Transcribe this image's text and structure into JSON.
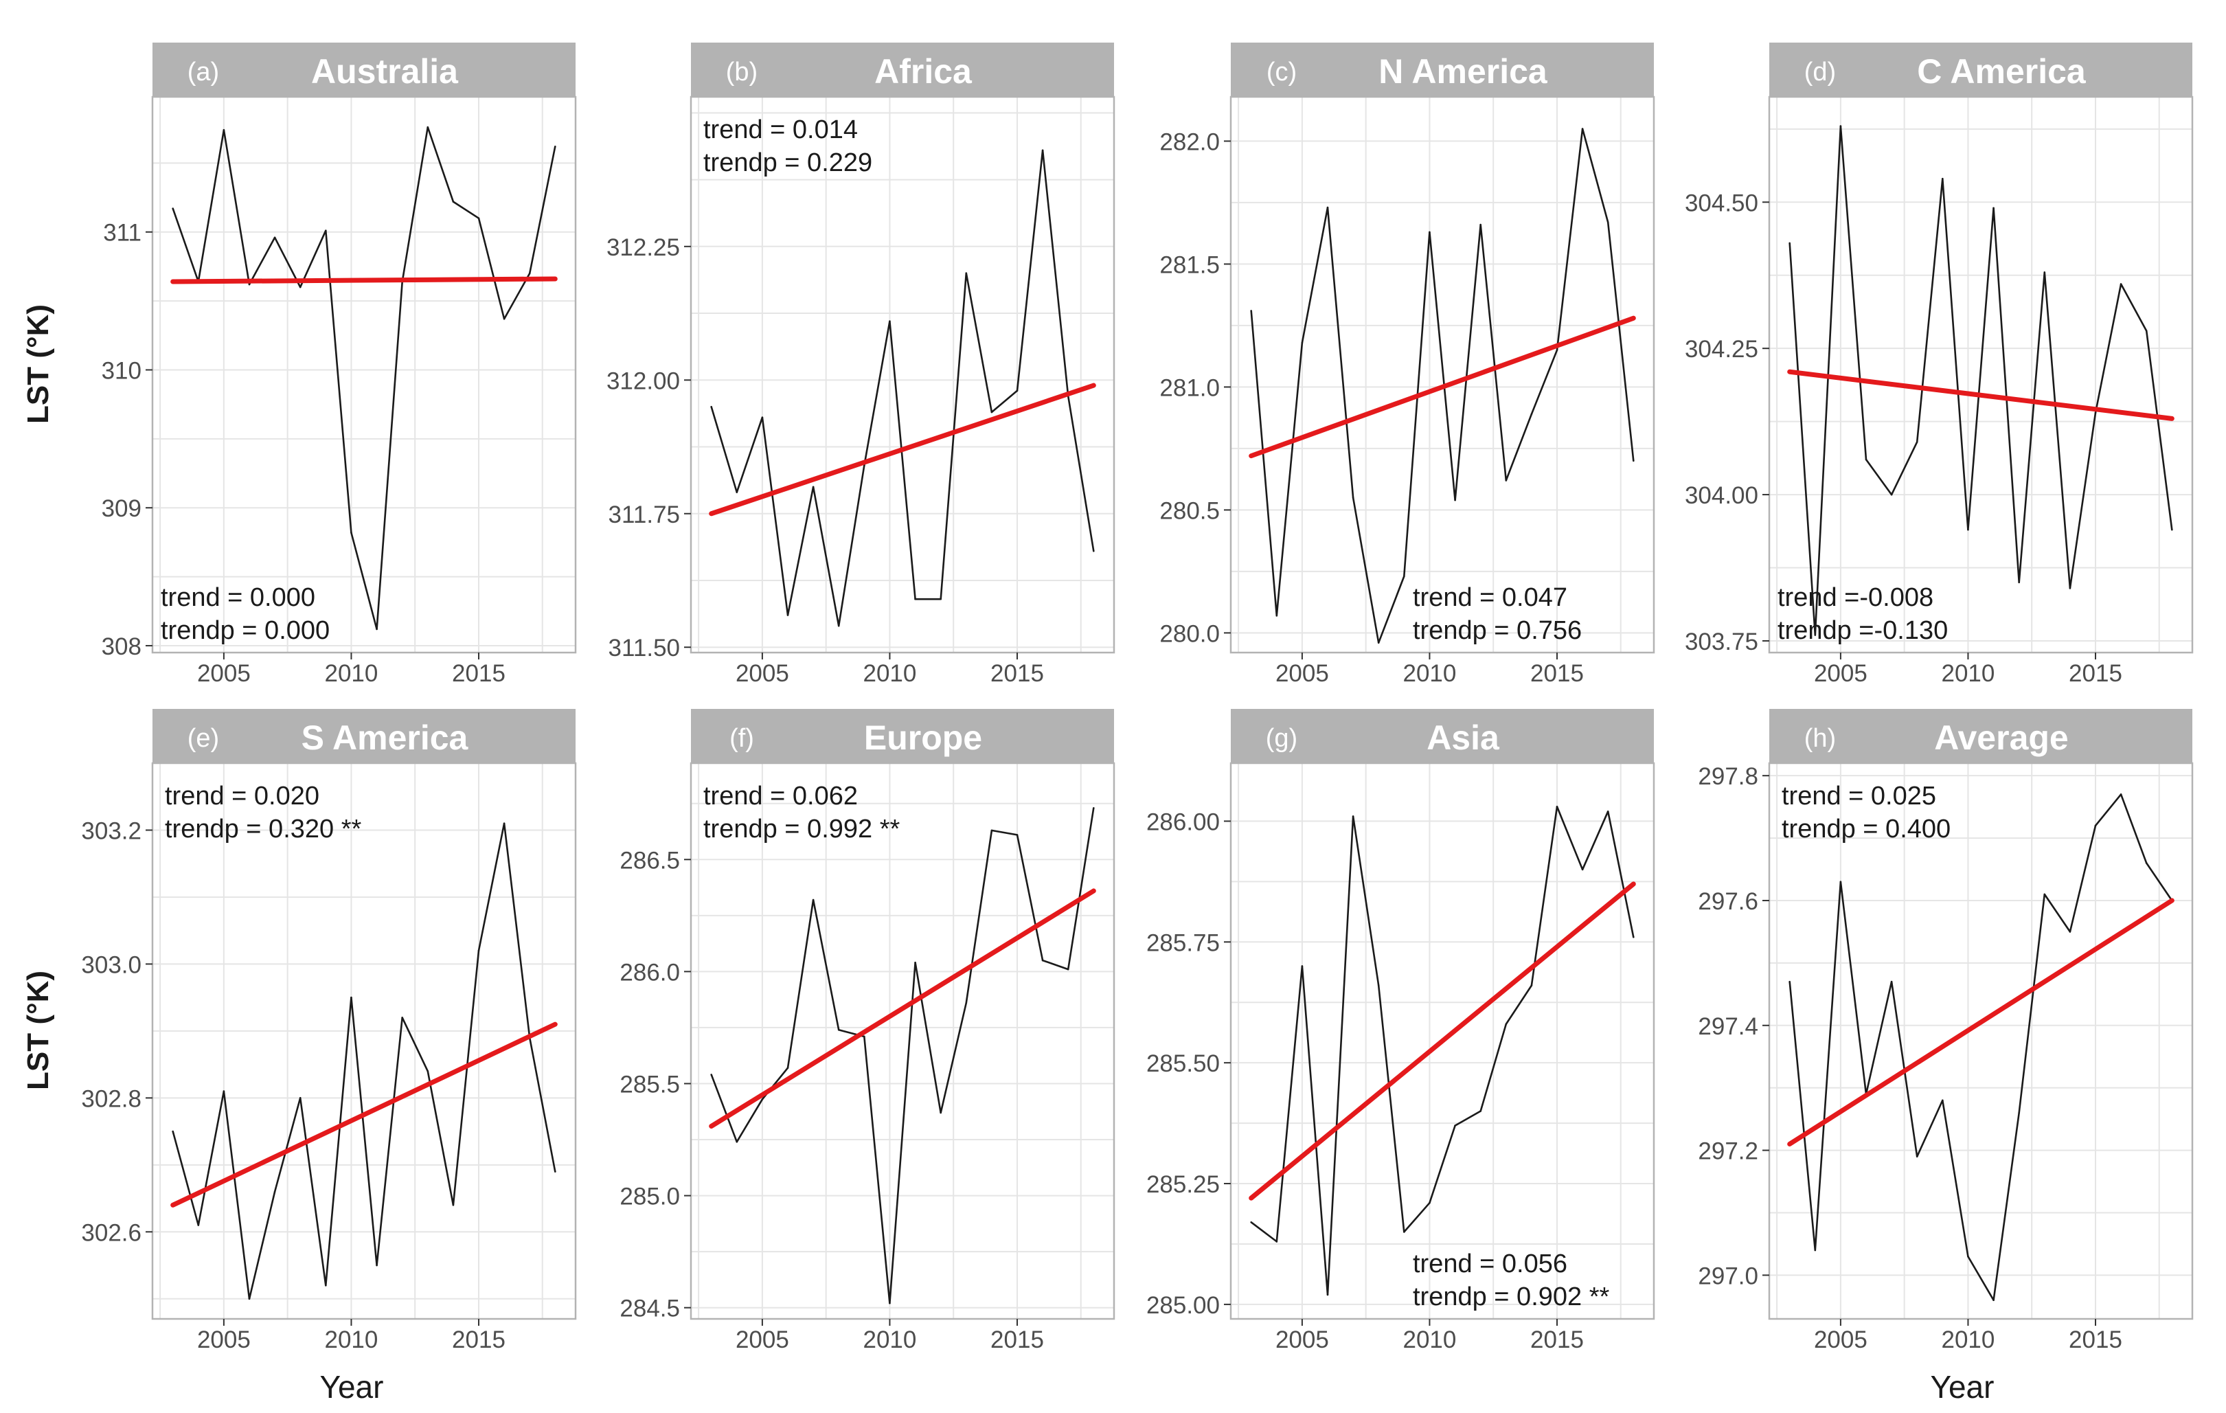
{
  "figure": {
    "y_axis_label": "LST (°K)",
    "x_axis_label": "Year",
    "x_ticks": [
      2005,
      2010,
      2015
    ]
  },
  "colors": {
    "strip_bg": "#b3b3b3",
    "strip_text": "#ffffff",
    "panel_border": "#b3b3b3",
    "grid": "#e5e5e5",
    "series_line": "#1a1a1a",
    "trend_line": "#e41a1c"
  },
  "chart_data": [
    {
      "type": "line",
      "panel_letter": "(a)",
      "title": "Australia",
      "x": [
        2003,
        2004,
        2005,
        2006,
        2007,
        2008,
        2009,
        2010,
        2011,
        2012,
        2013,
        2014,
        2015,
        2016,
        2017,
        2018
      ],
      "series": [
        {
          "name": "LST",
          "values": [
            311.17,
            310.64,
            311.74,
            310.62,
            310.96,
            310.6,
            311.01,
            308.82,
            308.12,
            310.64,
            311.76,
            311.22,
            311.1,
            310.37,
            310.7,
            311.62
          ]
        }
      ],
      "trend_line": {
        "start": [
          2003,
          310.64
        ],
        "end": [
          2018,
          310.66
        ]
      },
      "ylim": [
        307.95,
        311.98
      ],
      "y_ticks": [
        308,
        309,
        310,
        311
      ],
      "y_tick_labels": [
        "308",
        "309",
        "310",
        "311"
      ],
      "annotation": [
        "trend = 0.000",
        "trendp = 0.000"
      ],
      "annotation_pos": "bottom-left"
    },
    {
      "type": "line",
      "panel_letter": "(b)",
      "title": "Africa",
      "x": [
        2003,
        2004,
        2005,
        2006,
        2007,
        2008,
        2009,
        2010,
        2011,
        2012,
        2013,
        2014,
        2015,
        2016,
        2017,
        2018
      ],
      "series": [
        {
          "name": "LST",
          "values": [
            311.95,
            311.79,
            311.93,
            311.56,
            311.8,
            311.54,
            311.84,
            312.11,
            311.59,
            311.59,
            312.2,
            311.94,
            311.98,
            312.43,
            311.97,
            311.68
          ]
        }
      ],
      "trend_line": {
        "start": [
          2003,
          311.75
        ],
        "end": [
          2018,
          311.99
        ]
      },
      "ylim": [
        311.49,
        312.53
      ],
      "y_ticks": [
        311.5,
        311.75,
        312.0,
        312.25
      ],
      "y_tick_labels": [
        "311.50",
        "311.75",
        "312.00",
        "312.25"
      ],
      "annotation": [
        "trend = 0.014",
        "trendp = 0.229"
      ],
      "annotation_pos": "top-left"
    },
    {
      "type": "line",
      "panel_letter": "(c)",
      "title": "N America",
      "x": [
        2003,
        2004,
        2005,
        2006,
        2007,
        2008,
        2009,
        2010,
        2011,
        2012,
        2013,
        2014,
        2015,
        2016,
        2017,
        2018
      ],
      "series": [
        {
          "name": "LST",
          "values": [
            281.31,
            280.07,
            281.18,
            281.73,
            280.55,
            279.96,
            280.23,
            281.63,
            280.54,
            281.66,
            280.62,
            280.89,
            281.15,
            282.05,
            281.67,
            280.7
          ]
        }
      ],
      "trend_line": {
        "start": [
          2003,
          280.72
        ],
        "end": [
          2018,
          281.28
        ]
      },
      "ylim": [
        279.92,
        282.18
      ],
      "y_ticks": [
        280,
        280.5,
        281,
        281.5,
        282
      ],
      "y_tick_labels": [
        "280.0",
        "280.5",
        "281.0",
        "281.5",
        "282.0"
      ],
      "annotation": [
        "trend = 0.047",
        "trendp = 0.756"
      ],
      "annotation_pos": "bottom-right"
    },
    {
      "type": "line",
      "panel_letter": "(d)",
      "title": "C America",
      "x": [
        2003,
        2004,
        2005,
        2006,
        2007,
        2008,
        2009,
        2010,
        2011,
        2012,
        2013,
        2014,
        2015,
        2016,
        2017,
        2018
      ],
      "series": [
        {
          "name": "LST",
          "values": [
            304.43,
            303.76,
            304.63,
            304.06,
            304.0,
            304.09,
            304.54,
            303.94,
            304.49,
            303.85,
            304.38,
            303.84,
            304.14,
            304.36,
            304.28,
            303.94
          ]
        }
      ],
      "trend_line": {
        "start": [
          2003,
          304.21
        ],
        "end": [
          2018,
          304.13
        ]
      },
      "ylim": [
        303.73,
        304.68
      ],
      "y_ticks": [
        303.75,
        304.0,
        304.25,
        304.5
      ],
      "y_tick_labels": [
        "303.75",
        "304.00",
        "304.25",
        "304.50"
      ],
      "annotation": [
        "trend =-0.008",
        "trendp =-0.130"
      ],
      "annotation_pos": "bottom-left"
    },
    {
      "type": "line",
      "panel_letter": "(e)",
      "title": "S America",
      "x": [
        2003,
        2004,
        2005,
        2006,
        2007,
        2008,
        2009,
        2010,
        2011,
        2012,
        2013,
        2014,
        2015,
        2016,
        2017,
        2018
      ],
      "series": [
        {
          "name": "LST",
          "values": [
            302.75,
            302.61,
            302.81,
            302.5,
            302.66,
            302.8,
            302.52,
            302.95,
            302.55,
            302.92,
            302.84,
            302.64,
            303.02,
            303.21,
            302.89,
            302.69
          ]
        }
      ],
      "trend_line": {
        "start": [
          2003,
          302.64
        ],
        "end": [
          2018,
          302.91
        ]
      },
      "ylim": [
        302.47,
        303.3
      ],
      "y_ticks": [
        302.6,
        302.8,
        303.0,
        303.2
      ],
      "y_tick_labels": [
        "302.6",
        "302.8",
        "303.0",
        "303.2"
      ],
      "annotation": [
        "trend = 0.020",
        "trendp = 0.320 **"
      ],
      "annotation_pos": "top-left"
    },
    {
      "type": "line",
      "panel_letter": "(f)",
      "title": "Europe",
      "x": [
        2003,
        2004,
        2005,
        2006,
        2007,
        2008,
        2009,
        2010,
        2011,
        2012,
        2013,
        2014,
        2015,
        2016,
        2017,
        2018
      ],
      "series": [
        {
          "name": "LST",
          "values": [
            285.54,
            285.24,
            285.43,
            285.57,
            286.32,
            285.74,
            285.71,
            284.52,
            286.04,
            285.37,
            285.86,
            286.63,
            286.61,
            286.05,
            286.01,
            286.73
          ]
        }
      ],
      "trend_line": {
        "start": [
          2003,
          285.31
        ],
        "end": [
          2018,
          286.36
        ]
      },
      "ylim": [
        284.45,
        286.93
      ],
      "y_ticks": [
        284.5,
        285,
        285.5,
        286,
        286.5
      ],
      "y_tick_labels": [
        "284.5",
        "285.0",
        "285.5",
        "286.0",
        "286.5"
      ],
      "annotation": [
        "trend = 0.062",
        "trendp = 0.992 **"
      ],
      "annotation_pos": "top-left"
    },
    {
      "type": "line",
      "panel_letter": "(g)",
      "title": "Asia",
      "x": [
        2003,
        2004,
        2005,
        2006,
        2007,
        2008,
        2009,
        2010,
        2011,
        2012,
        2013,
        2014,
        2015,
        2016,
        2017,
        2018
      ],
      "series": [
        {
          "name": "LST",
          "values": [
            285.17,
            285.13,
            285.7,
            285.02,
            286.01,
            285.66,
            285.15,
            285.21,
            285.37,
            285.4,
            285.58,
            285.66,
            286.03,
            285.9,
            286.02,
            285.76
          ]
        }
      ],
      "trend_line": {
        "start": [
          2003,
          285.22
        ],
        "end": [
          2018,
          285.87
        ]
      },
      "ylim": [
        284.97,
        286.12
      ],
      "y_ticks": [
        285,
        285.25,
        285.5,
        285.75,
        286
      ],
      "y_tick_labels": [
        "285.00",
        "285.25",
        "285.50",
        "285.75",
        "286.00"
      ],
      "annotation": [
        "trend = 0.056",
        "trendp = 0.902 **"
      ],
      "annotation_pos": "bottom-right"
    },
    {
      "type": "line",
      "panel_letter": "(h)",
      "title": "Average",
      "x": [
        2003,
        2004,
        2005,
        2006,
        2007,
        2008,
        2009,
        2010,
        2011,
        2012,
        2013,
        2014,
        2015,
        2016,
        2017,
        2018
      ],
      "series": [
        {
          "name": "LST",
          "values": [
            297.47,
            297.04,
            297.63,
            297.29,
            297.47,
            297.19,
            297.28,
            297.03,
            296.96,
            297.26,
            297.61,
            297.55,
            297.72,
            297.77,
            297.66,
            297.6
          ]
        }
      ],
      "trend_line": {
        "start": [
          2003,
          297.21
        ],
        "end": [
          2018,
          297.6
        ]
      },
      "ylim": [
        296.93,
        297.82
      ],
      "y_ticks": [
        297,
        297.2,
        297.4,
        297.6,
        297.8
      ],
      "y_tick_labels": [
        "297.0",
        "297.2",
        "297.4",
        "297.6",
        "297.8"
      ],
      "annotation": [
        "trend = 0.025",
        "trendp = 0.400"
      ],
      "annotation_pos": "top-left"
    }
  ]
}
